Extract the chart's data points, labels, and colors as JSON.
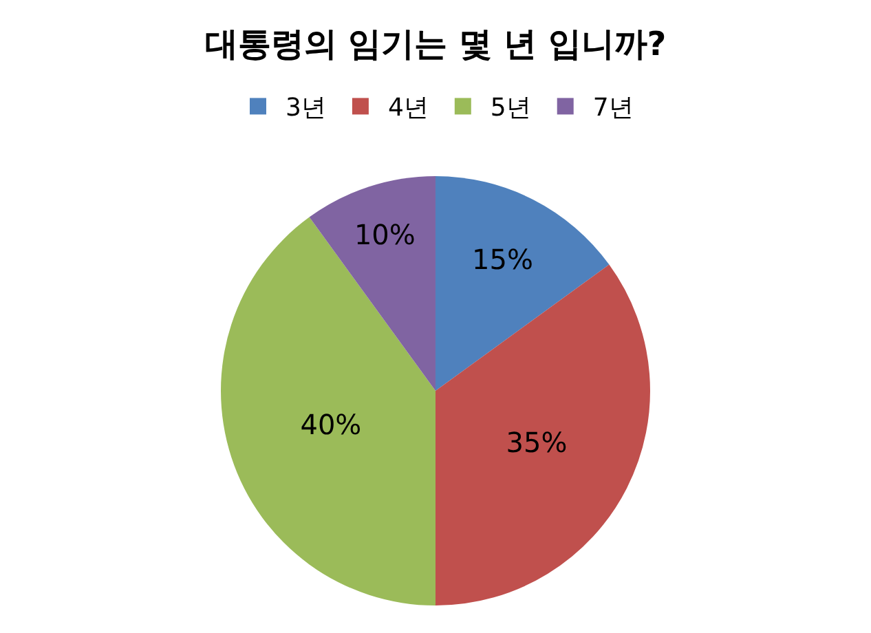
{
  "chart_data": {
    "type": "pie",
    "title": "대통령의 임기는 몇 년 입니까?",
    "categories": [
      "3년",
      "4년",
      "5년",
      "7년"
    ],
    "values": [
      15,
      35,
      40,
      10
    ],
    "value_labels": [
      "15%",
      "35%",
      "40%",
      "10%"
    ],
    "colors": [
      "#4f81bd",
      "#c0504d",
      "#9bbb59",
      "#8064a2"
    ],
    "legend": "top"
  }
}
